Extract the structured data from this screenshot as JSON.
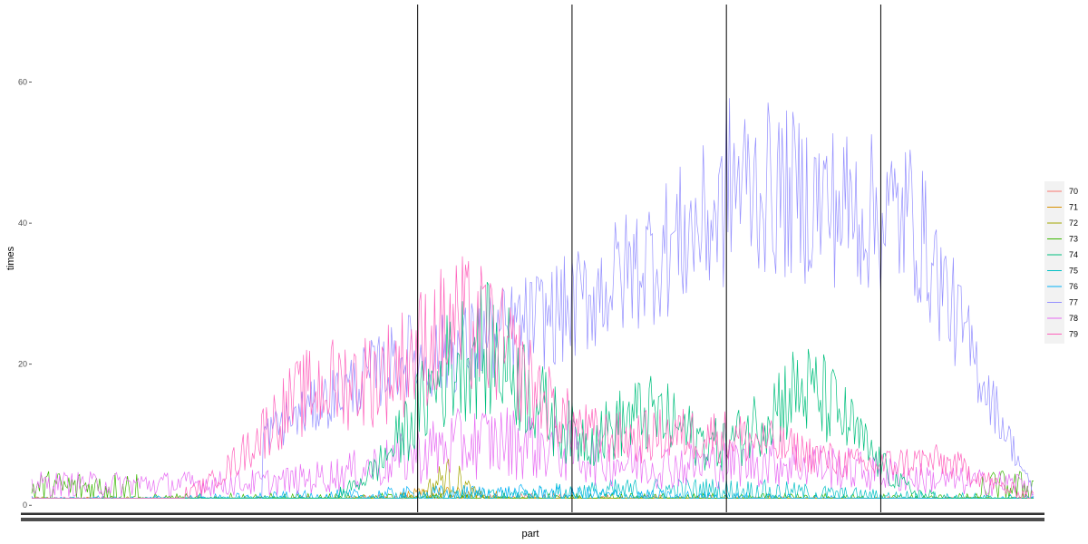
{
  "chart_data": {
    "type": "line",
    "title": "",
    "xlabel": "part",
    "ylabel": "times",
    "ylim": [
      -1,
      71
    ],
    "yticks": [
      0,
      20,
      40,
      60
    ],
    "x_points": 650,
    "vlines_x": [
      250,
      350,
      450,
      550
    ],
    "grid": false,
    "legend_position": "right",
    "series": [
      {
        "name": "70",
        "color": "#F8766D"
      },
      {
        "name": "71",
        "color": "#D89000"
      },
      {
        "name": "72",
        "color": "#A3A500"
      },
      {
        "name": "73",
        "color": "#39B600"
      },
      {
        "name": "74",
        "color": "#00BF7D"
      },
      {
        "name": "75",
        "color": "#00BFC4"
      },
      {
        "name": "76",
        "color": "#00B0F6"
      },
      {
        "name": "77",
        "color": "#9590FF"
      },
      {
        "name": "78",
        "color": "#E76BF3"
      },
      {
        "name": "79",
        "color": "#FF62BC"
      }
    ]
  }
}
